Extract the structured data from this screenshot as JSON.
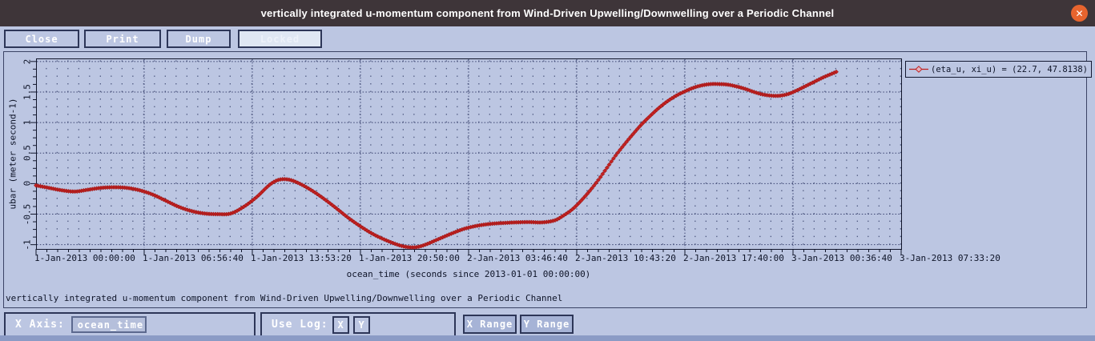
{
  "window": {
    "title": "vertically integrated u-momentum component from Wind-Driven Upwelling/Downwelling over a Periodic Channel",
    "close_glyph": "✕"
  },
  "toolbar": {
    "close": "Close",
    "print": "Print",
    "dump": "Dump",
    "locked": "Locked"
  },
  "chart_data": {
    "type": "line",
    "title": "vertically integrated u-momentum component from Wind-Driven Upwelling/Downwelling over a Periodic Channel",
    "xlabel": "ocean_time (seconds since 2013-01-01 00:00:00)",
    "ylabel": "ubar (meter second-1)",
    "grid": "dotted",
    "xlim": [
      0,
      200000
    ],
    "ylim": [
      -1.07,
      2.05
    ],
    "x_ticks": [
      {
        "value": 0,
        "label": "1-Jan-2013 00:00:00"
      },
      {
        "value": 25000,
        "label": "1-Jan-2013 06:56:40"
      },
      {
        "value": 50000,
        "label": "1-Jan-2013 13:53:20"
      },
      {
        "value": 75000,
        "label": "1-Jan-2013 20:50:00"
      },
      {
        "value": 100000,
        "label": "2-Jan-2013 03:46:40"
      },
      {
        "value": 125000,
        "label": "2-Jan-2013 10:43:20"
      },
      {
        "value": 150000,
        "label": "2-Jan-2013 17:40:00"
      },
      {
        "value": 175000,
        "label": "3-Jan-2013 00:36:40"
      },
      {
        "value": 200000,
        "label": "3-Jan-2013 07:33:20"
      }
    ],
    "y_ticks": [
      2,
      1.5,
      1,
      0.5,
      0,
      -0.5,
      -1
    ],
    "legend": {
      "label": "(eta_u, xi_u) = (22.7, 47.8138)",
      "color": "#c2201c",
      "marker": "diamond",
      "position": "top-right-outside"
    },
    "series": [
      {
        "name": "(eta_u, xi_u) = (22.7, 47.8138)",
        "color": "#c2201c",
        "marker": "diamond",
        "x": [
          0,
          3000,
          6000,
          9000,
          12000,
          15000,
          18000,
          21000,
          24000,
          27000,
          30000,
          33000,
          36000,
          39000,
          42000,
          45000,
          48000,
          51000,
          54000,
          56000,
          58000,
          60000,
          63000,
          66000,
          69000,
          72000,
          75000,
          78000,
          81000,
          84000,
          86000,
          88000,
          90000,
          93000,
          96000,
          99000,
          102000,
          105000,
          108000,
          111000,
          114000,
          117000,
          120000,
          122000,
          124000,
          126000,
          128000,
          130000,
          132000,
          134000,
          136000,
          138000,
          140000,
          142000,
          144000,
          146000,
          148000,
          150000,
          152000,
          154000,
          156000,
          158000,
          160000,
          162000,
          164000,
          166000,
          168000,
          170000,
          172000,
          174000,
          176000,
          178000,
          180000,
          182000,
          184000,
          185000
        ],
        "y": [
          -0.03,
          -0.07,
          -0.11,
          -0.13,
          -0.1,
          -0.07,
          -0.06,
          -0.07,
          -0.11,
          -0.18,
          -0.28,
          -0.38,
          -0.45,
          -0.49,
          -0.5,
          -0.49,
          -0.38,
          -0.22,
          -0.02,
          0.06,
          0.07,
          0.03,
          -0.08,
          -0.22,
          -0.38,
          -0.55,
          -0.7,
          -0.83,
          -0.93,
          -1.01,
          -1.04,
          -1.04,
          -1.0,
          -0.91,
          -0.82,
          -0.74,
          -0.69,
          -0.66,
          -0.645,
          -0.635,
          -0.63,
          -0.635,
          -0.6,
          -0.52,
          -0.42,
          -0.28,
          -0.12,
          0.06,
          0.26,
          0.46,
          0.64,
          0.81,
          0.97,
          1.11,
          1.24,
          1.35,
          1.44,
          1.51,
          1.57,
          1.61,
          1.63,
          1.63,
          1.62,
          1.59,
          1.55,
          1.5,
          1.46,
          1.44,
          1.44,
          1.47,
          1.53,
          1.6,
          1.67,
          1.74,
          1.8,
          1.83
        ]
      }
    ]
  },
  "controls": {
    "x_axis_label": "X Axis:",
    "x_axis_value": "ocean_time",
    "use_log_label": "Use Log:",
    "log_x": "X",
    "log_y": "Y",
    "x_range": "X Range",
    "y_range": "Y Range"
  },
  "colors": {
    "window_bg": "#bcc6e2",
    "titlebar_bg": "#3e3539",
    "close_circle": "#e7642e",
    "curve": "#c2201c",
    "grid_dot": "#4d587f",
    "axis_text": "#0e1428",
    "group_border": "#2d3658",
    "range_button_bg": "#a6b3d6",
    "bottom_edge": "#8b9bc5"
  }
}
